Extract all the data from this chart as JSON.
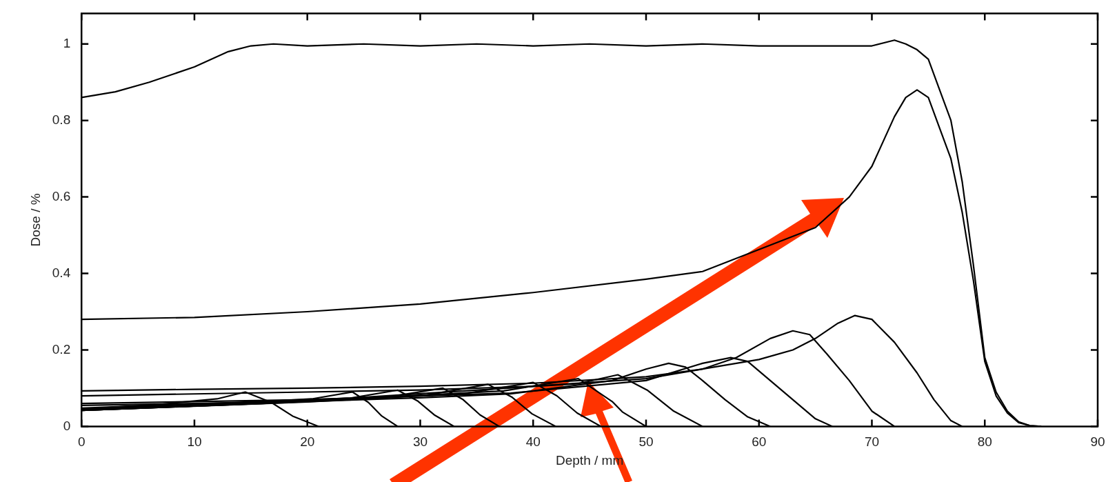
{
  "chart_data": {
    "type": "line",
    "xlabel": "Depth / mm",
    "ylabel": "Dose / %",
    "xlim": [
      0,
      90
    ],
    "ylim": [
      0,
      1.08
    ],
    "xticks": [
      0,
      10,
      20,
      30,
      40,
      50,
      60,
      70,
      80,
      90
    ],
    "yticks": [
      0,
      0.2,
      0.4,
      0.6,
      0.8,
      1
    ],
    "marker": "none",
    "line_style": "solid",
    "series": [
      {
        "color": "#000000",
        "x": [
          0,
          3,
          6,
          10,
          13,
          15,
          17,
          20,
          25,
          30,
          35,
          40,
          45,
          50,
          55,
          60,
          65,
          70,
          72,
          73,
          74,
          75,
          76,
          77,
          78,
          79,
          80,
          81,
          82,
          83,
          84,
          85
        ],
        "values": [
          0.86,
          0.875,
          0.9,
          0.94,
          0.98,
          0.995,
          1.0,
          0.995,
          1.0,
          0.995,
          1.0,
          0.995,
          1.0,
          0.995,
          1.0,
          0.995,
          0.995,
          0.995,
          1.01,
          1.0,
          0.985,
          0.96,
          0.88,
          0.8,
          0.64,
          0.42,
          0.18,
          0.09,
          0.04,
          0.012,
          0.002,
          0
        ]
      },
      {
        "color": "#000000",
        "x": [
          0,
          10,
          20,
          30,
          40,
          50,
          55,
          65,
          68,
          70,
          72,
          73,
          74,
          75,
          76,
          77,
          78,
          79,
          80,
          81,
          82,
          83,
          84,
          85
        ],
        "values": [
          0.28,
          0.285,
          0.3,
          0.32,
          0.35,
          0.385,
          0.405,
          0.52,
          0.6,
          0.68,
          0.81,
          0.86,
          0.88,
          0.86,
          0.78,
          0.7,
          0.56,
          0.38,
          0.17,
          0.08,
          0.035,
          0.01,
          0.002,
          0
        ]
      },
      {
        "color": "#000000",
        "x": [
          0,
          10,
          20,
          30,
          40,
          50,
          55,
          60,
          63,
          65,
          67,
          68.5,
          70,
          72,
          74,
          75.5,
          77,
          78
        ],
        "values": [
          0.093,
          0.097,
          0.1,
          0.105,
          0.113,
          0.13,
          0.15,
          0.175,
          0.2,
          0.23,
          0.27,
          0.29,
          0.28,
          0.22,
          0.14,
          0.07,
          0.015,
          0
        ]
      },
      {
        "color": "#000000",
        "x": [
          0,
          10,
          20,
          30,
          40,
          50,
          55,
          58,
          61,
          63,
          64.5,
          66,
          68,
          70,
          72
        ],
        "values": [
          0.08,
          0.085,
          0.09,
          0.095,
          0.105,
          0.125,
          0.15,
          0.18,
          0.23,
          0.25,
          0.24,
          0.19,
          0.12,
          0.04,
          0
        ]
      },
      {
        "color": "#000000",
        "x": [
          0,
          10,
          20,
          30,
          38,
          50,
          55,
          57.5,
          59,
          61,
          63,
          65,
          66.5
        ],
        "values": [
          0.06,
          0.065,
          0.07,
          0.08,
          0.087,
          0.12,
          0.165,
          0.18,
          0.17,
          0.12,
          0.07,
          0.02,
          0
        ]
      },
      {
        "color": "#000000",
        "x": [
          0,
          10,
          20,
          30,
          38,
          47,
          50,
          52,
          53.5,
          55,
          57,
          59,
          61
        ],
        "values": [
          0.055,
          0.06,
          0.065,
          0.075,
          0.085,
          0.12,
          0.15,
          0.165,
          0.155,
          0.12,
          0.07,
          0.025,
          0
        ]
      },
      {
        "color": "#000000",
        "x": [
          0,
          23.8,
          44,
          47.5,
          50.1,
          52.4,
          55
        ],
        "values": [
          0.048,
          0.074,
          0.112,
          0.135,
          0.095,
          0.041,
          0
        ]
      },
      {
        "color": "#000000",
        "x": [
          0,
          22,
          37.4,
          44,
          47,
          47.9,
          50
        ],
        "values": [
          0.045,
          0.069,
          0.093,
          0.125,
          0.065,
          0.038,
          0
        ]
      },
      {
        "color": "#000000",
        "x": [
          0,
          20,
          34,
          40,
          42.1,
          43.9,
          46
        ],
        "values": [
          0.042,
          0.064,
          0.086,
          0.115,
          0.08,
          0.035,
          0
        ]
      },
      {
        "color": "#000000",
        "x": [
          0,
          18,
          30.6,
          36,
          38.1,
          39.9,
          42
        ],
        "values": [
          0.042,
          0.062,
          0.082,
          0.11,
          0.077,
          0.033,
          0
        ]
      },
      {
        "color": "#000000",
        "x": [
          0,
          16,
          27.2,
          32,
          33.8,
          35.3,
          37
        ],
        "values": [
          0.042,
          0.06,
          0.077,
          0.1,
          0.07,
          0.03,
          0
        ]
      },
      {
        "color": "#000000",
        "x": [
          0,
          14,
          23.8,
          28,
          29.8,
          31.3,
          33
        ],
        "values": [
          0.042,
          0.058,
          0.074,
          0.095,
          0.066,
          0.029,
          0
        ]
      },
      {
        "color": "#000000",
        "x": [
          0,
          12,
          20.4,
          24,
          25.4,
          26.6,
          28
        ],
        "values": [
          0.045,
          0.058,
          0.072,
          0.09,
          0.063,
          0.027,
          0
        ]
      },
      {
        "color": "#000000",
        "x": [
          0,
          7,
          12,
          14.5,
          16.8,
          18.7,
          21
        ],
        "values": [
          0.045,
          0.058,
          0.072,
          0.09,
          0.063,
          0.027,
          0
        ]
      }
    ]
  }
}
